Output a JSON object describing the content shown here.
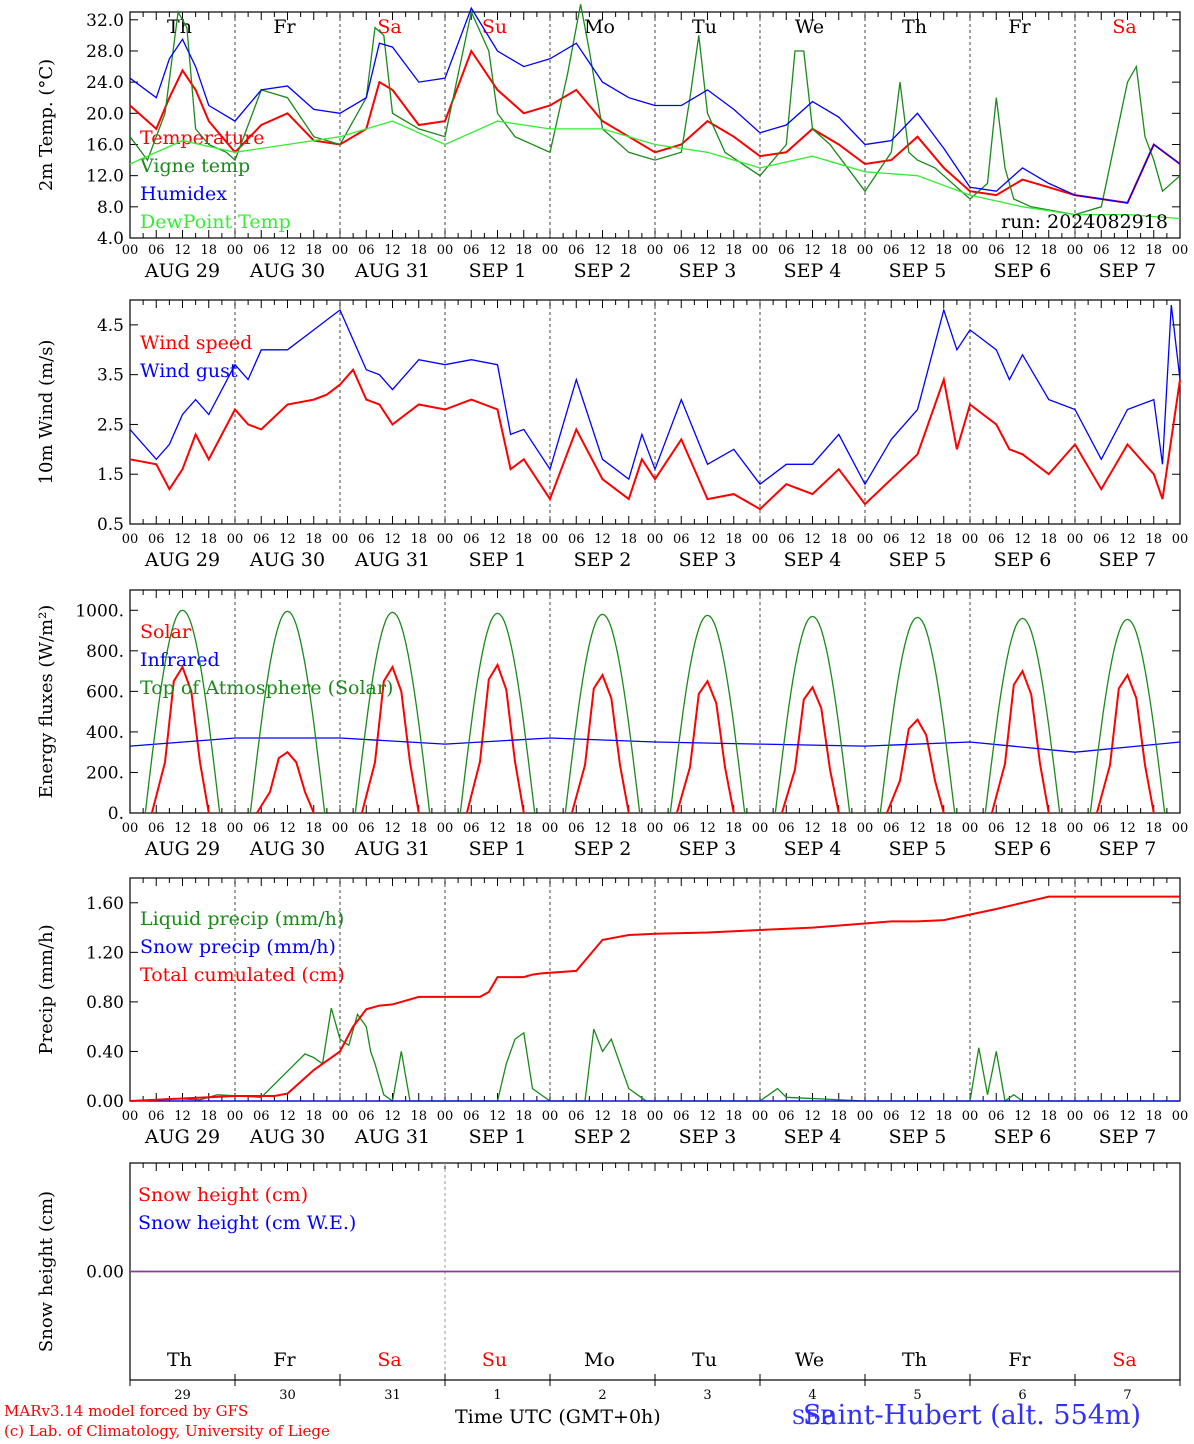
{
  "run_label": "run: 2024082918",
  "footer": {
    "credit_line1": "MARv3.14 model forced by GFS",
    "credit_line2": "(c) Lab. of Climatology, University of Liege",
    "time_label": "Time UTC (GMT+0h)",
    "station": "Saint-Hubert (alt. 554m)"
  },
  "time_axis": {
    "hour_ticks": [
      "00",
      "06",
      "12",
      "18"
    ],
    "end_tick": "00",
    "dates": [
      "AUG 29",
      "AUG 30",
      "AUG 31",
      "SEP  1",
      "SEP  2",
      "SEP  3",
      "SEP  4",
      "SEP  5",
      "SEP  6",
      "SEP  7"
    ],
    "day_names": [
      "Th",
      "Fr",
      "Sa",
      "Su",
      "Mo",
      "Tu",
      "We",
      "Th",
      "Fr",
      "Sa"
    ],
    "weekend_flags": [
      false,
      false,
      true,
      true,
      false,
      false,
      false,
      false,
      false,
      true
    ],
    "day_numbers": [
      "29",
      "30",
      "31",
      "1",
      "2",
      "3",
      "4",
      "5",
      "6",
      "7"
    ],
    "month_marker": "SEP"
  },
  "colors": {
    "red": "#ff0000",
    "green": "#1a8a1a",
    "blue": "#0000ff",
    "lightgreen": "#33ee33",
    "purple": "#8a3a9a"
  },
  "chart_data": [
    {
      "type": "line",
      "ylabel": "2m Temp. (°C)",
      "ylim": [
        4,
        33
      ],
      "y_ticks": [
        "4.0",
        "8.0",
        "12.0",
        "16.0",
        "20.0",
        "24.0",
        "28.0",
        "32.0"
      ],
      "x_units": "hours since AUG 29 00 UTC",
      "series": [
        {
          "name": "Temperature",
          "color": "red",
          "x": [
            0,
            6,
            9,
            12,
            15,
            18,
            24,
            30,
            36,
            42,
            48,
            54,
            57,
            60,
            66,
            72,
            78,
            84,
            90,
            96,
            102,
            108,
            114,
            120,
            126,
            132,
            138,
            144,
            150,
            156,
            162,
            168,
            174,
            180,
            186,
            192,
            198,
            204,
            210,
            216,
            222,
            228,
            234,
            240
          ],
          "y": [
            21,
            18,
            22,
            25.5,
            23,
            19,
            15,
            18.5,
            20,
            16.5,
            16,
            18,
            24,
            23,
            18.5,
            19,
            28,
            23,
            20,
            21,
            23,
            19,
            17,
            15,
            16,
            19,
            17,
            14.5,
            15,
            18,
            16,
            13.5,
            14,
            17,
            13,
            10,
            9.5,
            11.5,
            10.5,
            9.5,
            9,
            8.5,
            16,
            13.5
          ]
        },
        {
          "name": "Vigne temp",
          "color": "green",
          "x": [
            0,
            4,
            8,
            11,
            13,
            15,
            18,
            22,
            24,
            30,
            36,
            42,
            48,
            54,
            56,
            58,
            60,
            66,
            72,
            78,
            82,
            84,
            88,
            96,
            100,
            103,
            105,
            108,
            114,
            120,
            126,
            128,
            130,
            132,
            136,
            144,
            150,
            152,
            154,
            156,
            160,
            168,
            174,
            176,
            178,
            180,
            184,
            192,
            196,
            198,
            200,
            202,
            206,
            216,
            222,
            228,
            230,
            232,
            234,
            236,
            240
          ],
          "y": [
            17,
            14,
            20,
            33,
            31,
            18,
            16,
            15,
            14,
            23,
            22,
            17,
            16,
            22,
            31,
            30,
            20,
            18,
            17,
            33,
            28,
            20,
            17,
            15,
            25,
            34,
            28,
            18,
            15,
            14,
            15,
            22,
            30,
            20,
            15,
            12,
            16,
            28,
            28,
            18,
            16,
            10,
            15,
            24,
            15,
            14,
            13,
            9,
            11,
            22,
            13,
            9,
            8,
            7,
            8,
            24,
            26,
            17,
            14,
            10,
            12
          ]
        },
        {
          "name": "Humidex",
          "color": "blue",
          "x": [
            0,
            6,
            9,
            12,
            15,
            18,
            24,
            30,
            36,
            42,
            48,
            54,
            57,
            60,
            66,
            72,
            78,
            84,
            90,
            96,
            102,
            108,
            114,
            120,
            126,
            132,
            138,
            144,
            150,
            156,
            162,
            168,
            174,
            180,
            186,
            192,
            198,
            204,
            210,
            216,
            222,
            228,
            234,
            240
          ],
          "y": [
            24.5,
            22,
            27,
            29.5,
            26,
            21,
            19,
            23,
            23.5,
            20.5,
            20,
            22,
            29,
            28.5,
            24,
            24.5,
            33.5,
            28,
            26,
            27,
            29,
            24,
            22,
            21,
            21,
            23,
            20.5,
            17.5,
            18.5,
            21.5,
            19.5,
            16,
            16.5,
            20,
            15.5,
            10.5,
            10,
            13,
            11,
            9.5,
            9,
            8.5,
            16,
            13.5
          ]
        },
        {
          "name": "DewPoint Temp",
          "color": "lightgreen",
          "x": [
            0,
            12,
            24,
            36,
            48,
            60,
            72,
            84,
            96,
            108,
            120,
            132,
            144,
            156,
            168,
            180,
            192,
            204,
            216,
            228,
            240
          ],
          "y": [
            13.5,
            16.5,
            15,
            16,
            17,
            19,
            16,
            19,
            18,
            18,
            16,
            15,
            13,
            14.5,
            12.5,
            12,
            9.5,
            8,
            7,
            7,
            6.5
          ]
        }
      ]
    },
    {
      "type": "line",
      "ylabel": "10m Wind (m/s)",
      "ylim": [
        0.5,
        5
      ],
      "y_ticks": [
        "0.5",
        "1.5",
        "2.5",
        "3.5",
        "4.5"
      ],
      "series": [
        {
          "name": "Wind speed",
          "color": "red",
          "x": [
            0,
            6,
            9,
            12,
            15,
            18,
            24,
            27,
            30,
            36,
            42,
            45,
            48,
            51,
            54,
            57,
            60,
            66,
            72,
            78,
            84,
            87,
            90,
            96,
            102,
            108,
            114,
            117,
            120,
            126,
            132,
            138,
            144,
            150,
            156,
            162,
            168,
            174,
            180,
            186,
            189,
            192,
            198,
            201,
            204,
            210,
            216,
            222,
            228,
            234,
            236,
            240
          ],
          "y": [
            1.8,
            1.7,
            1.2,
            1.6,
            2.3,
            1.8,
            2.8,
            2.5,
            2.4,
            2.9,
            3.0,
            3.1,
            3.3,
            3.6,
            3.0,
            2.9,
            2.5,
            2.9,
            2.8,
            3.0,
            2.8,
            1.6,
            1.8,
            1.0,
            2.4,
            1.4,
            1.0,
            1.8,
            1.4,
            2.2,
            1.0,
            1.1,
            0.8,
            1.3,
            1.1,
            1.6,
            0.9,
            1.4,
            1.9,
            3.4,
            2.0,
            2.9,
            2.5,
            2.0,
            1.9,
            1.5,
            2.1,
            1.2,
            2.1,
            1.5,
            1.0,
            3.4
          ]
        },
        {
          "name": "Wind gust",
          "color": "blue",
          "x": [
            0,
            6,
            9,
            12,
            15,
            18,
            24,
            27,
            30,
            36,
            42,
            45,
            48,
            51,
            54,
            57,
            60,
            66,
            72,
            78,
            84,
            87,
            90,
            96,
            102,
            108,
            114,
            117,
            120,
            126,
            132,
            138,
            144,
            150,
            156,
            162,
            168,
            174,
            180,
            186,
            189,
            192,
            198,
            201,
            204,
            210,
            216,
            222,
            228,
            234,
            236,
            238,
            240
          ],
          "y": [
            2.4,
            1.8,
            2.1,
            2.7,
            3.0,
            2.7,
            3.7,
            3.4,
            4.0,
            4.0,
            4.4,
            4.6,
            4.8,
            4.2,
            3.6,
            3.5,
            3.2,
            3.8,
            3.7,
            3.8,
            3.7,
            2.3,
            2.4,
            1.6,
            3.4,
            1.8,
            1.4,
            2.3,
            1.6,
            3.0,
            1.7,
            2.0,
            1.3,
            1.7,
            1.7,
            2.3,
            1.3,
            2.2,
            2.8,
            4.8,
            4.0,
            4.4,
            4.0,
            3.4,
            3.9,
            3.0,
            2.8,
            1.8,
            2.8,
            3.0,
            1.7,
            4.9,
            3.4
          ]
        }
      ]
    },
    {
      "type": "line",
      "ylabel": "Energy fluxes (W/m²)",
      "ylim": [
        0,
        1100
      ],
      "y_ticks": [
        "0.",
        "200.",
        "400.",
        "600.",
        "800.",
        "1000."
      ],
      "series": [
        {
          "name": "Solar",
          "color": "red",
          "day_shape": [
            [
              5,
              0
            ],
            [
              8,
              250
            ],
            [
              10,
              650
            ],
            [
              12,
              720
            ],
            [
              14,
              600
            ],
            [
              16,
              250
            ],
            [
              18,
              0
            ]
          ],
          "daily_peak": [
            720,
            300,
            720,
            730,
            680,
            650,
            620,
            460,
            700,
            680
          ]
        },
        {
          "name": "Infrared",
          "color": "blue",
          "x": [
            0,
            24,
            48,
            72,
            96,
            120,
            144,
            168,
            192,
            216,
            240
          ],
          "y": [
            330,
            370,
            370,
            340,
            370,
            350,
            340,
            330,
            350,
            300,
            350
          ]
        },
        {
          "name": "Top of Atmosphere (Solar)",
          "color": "green",
          "daily_peak": [
            1000,
            995,
            990,
            985,
            980,
            975,
            970,
            965,
            960,
            955
          ]
        }
      ]
    },
    {
      "type": "line",
      "ylabel": "Precip (mm/h)",
      "ylim": [
        0,
        1.8
      ],
      "y_ticks": [
        "0.00",
        "0.40",
        "0.80",
        "1.20",
        "1.60"
      ],
      "series": [
        {
          "name": "Liquid precip (mm/h)",
          "color": "green",
          "x": [
            0,
            10,
            16,
            20,
            30,
            40,
            42,
            44,
            46,
            48,
            50,
            52,
            54,
            55,
            56,
            58,
            60,
            62,
            64,
            66,
            68,
            70,
            84,
            86,
            88,
            90,
            92,
            96,
            104,
            106,
            108,
            110,
            112,
            114,
            116,
            118,
            120,
            140,
            144,
            146,
            148,
            150,
            168,
            180,
            190,
            192,
            194,
            196,
            198,
            200,
            202,
            204,
            210,
            240
          ],
          "y": [
            0,
            0.02,
            0.01,
            0.05,
            0.03,
            0.38,
            0.35,
            0.3,
            0.75,
            0.5,
            0.45,
            0.7,
            0.6,
            0.4,
            0.3,
            0.05,
            0,
            0.4,
            0,
            0,
            0,
            0,
            0,
            0.3,
            0.5,
            0.55,
            0.1,
            0,
            0,
            0.58,
            0.4,
            0.5,
            0.3,
            0.1,
            0.05,
            0,
            0,
            0,
            0,
            0.05,
            0.1,
            0.03,
            0,
            0,
            0,
            0,
            0.43,
            0.05,
            0.4,
            0,
            0.05,
            0,
            0,
            0
          ]
        },
        {
          "name": "Snow precip (mm/h)",
          "color": "blue",
          "x": [
            0,
            240
          ],
          "y": [
            0,
            0
          ]
        },
        {
          "name": "Total cumulated (cm)",
          "color": "red",
          "x": [
            0,
            12,
            24,
            33,
            36,
            42,
            48,
            51,
            54,
            57,
            60,
            66,
            72,
            80,
            82,
            84,
            90,
            92,
            94,
            102,
            108,
            114,
            120,
            132,
            144,
            156,
            174,
            180,
            186,
            198,
            204,
            210,
            216,
            240
          ],
          "y": [
            0,
            0.02,
            0.04,
            0.04,
            0.06,
            0.25,
            0.4,
            0.6,
            0.74,
            0.77,
            0.78,
            0.84,
            0.84,
            0.84,
            0.88,
            1.0,
            1.0,
            1.02,
            1.03,
            1.05,
            1.3,
            1.34,
            1.35,
            1.36,
            1.38,
            1.4,
            1.45,
            1.45,
            1.46,
            1.55,
            1.6,
            1.65,
            1.65,
            1.65
          ]
        }
      ]
    },
    {
      "type": "line",
      "ylabel": "Snow height (cm)",
      "ylim": [
        -0.5,
        0.5
      ],
      "y_ticks": [
        "0.00"
      ],
      "series": [
        {
          "name": "Snow height (cm)",
          "color": "red",
          "x": [
            0,
            240
          ],
          "y": [
            0,
            0
          ]
        },
        {
          "name": "Snow height (cm W.E.)",
          "color": "blue",
          "x": [
            0,
            240
          ],
          "y": [
            0,
            0
          ]
        }
      ]
    }
  ]
}
